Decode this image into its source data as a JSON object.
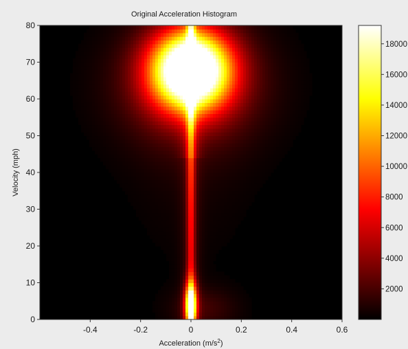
{
  "chart_data": {
    "type": "heatmap",
    "title": "Original Acceleration Histogram",
    "xlabel": "Acceleration (m/s",
    "xlabel_superscript": "2",
    "xlabel_close": ")",
    "ylabel": "Velocity (mph)",
    "xlim": [
      -0.6,
      0.6
    ],
    "ylim": [
      0,
      80
    ],
    "x_ticks": [
      "-0.4",
      "-0.2",
      "0",
      "0.2",
      "0.4",
      "0.6"
    ],
    "y_ticks": [
      "0",
      "10",
      "20",
      "30",
      "40",
      "50",
      "60",
      "70",
      "80"
    ],
    "colorbar": {
      "colormap": "hot",
      "range": [
        0,
        19200
      ],
      "ticks": [
        "2000",
        "4000",
        "6000",
        "8000",
        "10000",
        "12000",
        "14000",
        "16000",
        "18000"
      ]
    },
    "density_features": [
      {
        "feature": "peak blob",
        "center_acceleration": 0.0,
        "center_velocity": 68,
        "max_count": 19000
      },
      {
        "feature": "central column",
        "acceleration": 0.0,
        "velocity_range": [
          0,
          80
        ]
      },
      {
        "feature": "low-speed peak",
        "center_acceleration": 0.0,
        "center_velocity": 4,
        "max_count": 18000
      }
    ]
  }
}
